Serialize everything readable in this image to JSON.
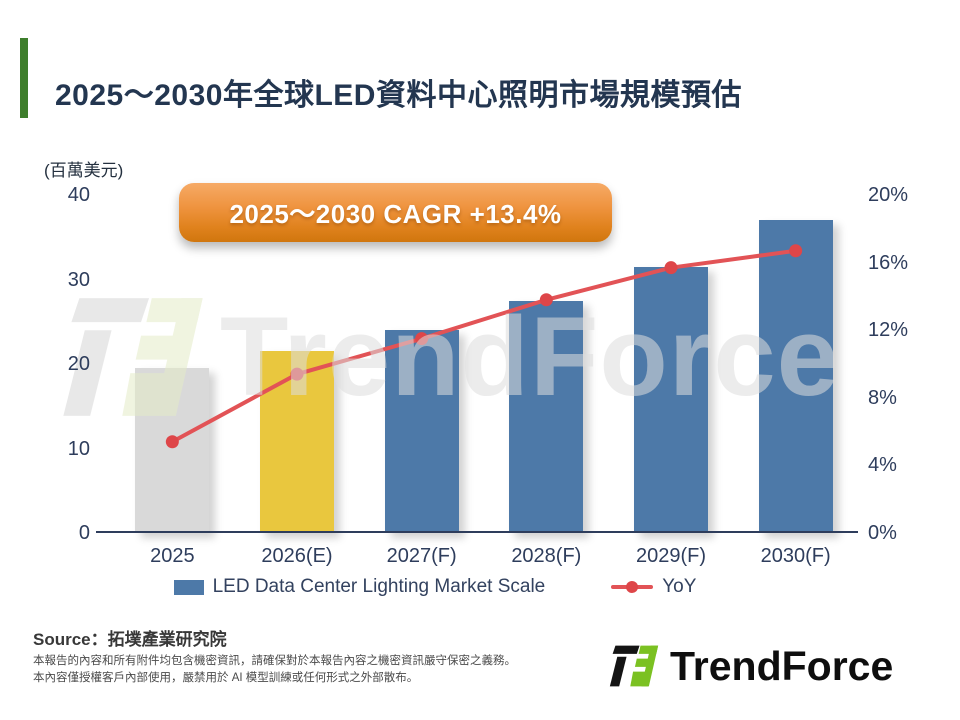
{
  "header": {
    "title": "2025～2030年全球LED資料中心照明市場規模預估"
  },
  "chart": {
    "badge": "2025～2030 CAGR +13.4%"
  },
  "chart_data": {
    "type": "bar",
    "title": "2025～2030年全球LED資料中心照明市場規模預估",
    "categories": [
      "2025",
      "2026(E)",
      "2027(F)",
      "2028(F)",
      "2029(F)",
      "2030(F)"
    ],
    "series": [
      {
        "name": "LED Data Center Lighting Market Scale",
        "chart_type": "bar",
        "axis": "left",
        "values": [
          19.5,
          21.5,
          24,
          27.5,
          31.5,
          37
        ],
        "bar_colors": [
          "#d9d9d9",
          "#e9c73e",
          "#4d79a8",
          "#4d79a8",
          "#4d79a8",
          "#4d79a8"
        ]
      },
      {
        "name": "YoY",
        "chart_type": "line",
        "axis": "right",
        "values": [
          5.4,
          9.4,
          11.5,
          13.8,
          15.7,
          16.7
        ],
        "line_color": "#e25356",
        "dot_color": "#de4649"
      }
    ],
    "left_axis": {
      "unit": "(百萬美元)",
      "min": 0,
      "max": 40,
      "ticks": [
        40,
        30,
        20,
        10,
        0
      ]
    },
    "right_axis": {
      "min": 0,
      "max": 20,
      "ticks": [
        20,
        16,
        12,
        8,
        4,
        0
      ],
      "suffix": "%"
    },
    "annotation": "2025～2030 CAGR +13.4%",
    "grid": false,
    "legend_position": "bottom"
  },
  "legend": {
    "bar_label": "LED Data Center Lighting Market Scale",
    "line_label": "YoY"
  },
  "watermark": {
    "text": "TrendForce"
  },
  "footer": {
    "source": "Source：拓墣產業研究院",
    "disclaimer_line1": "本報告的內容和所有附件均包含機密資訊，請確保對於本報告內容之機密資訊嚴守保密之義務。",
    "disclaimer_line2": "本內容僅授權客戶內部使用，嚴禁用於 AI 模型訓練或任何形式之外部散布。",
    "logo_text": "TrendForce"
  },
  "colors": {
    "accent_green": "#3e7e2c",
    "title_navy": "#233650",
    "bar_blue": "#4d79a8",
    "bar_yellow": "#e9c73e",
    "bar_gray": "#d9d9d9",
    "line_red": "#e25356",
    "badge_orange": "#e0821d",
    "logo_green": "#7bc122"
  }
}
